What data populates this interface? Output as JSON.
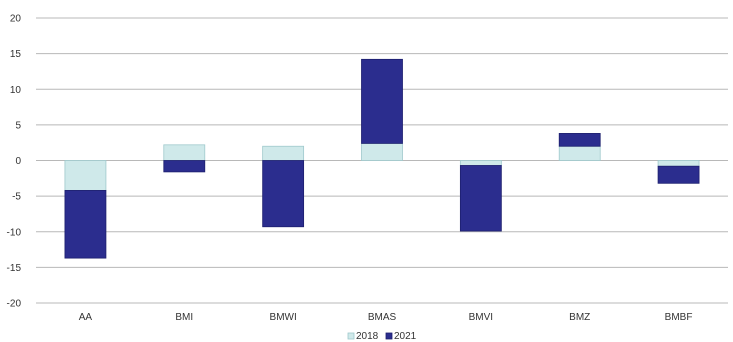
{
  "chart_data": {
    "type": "bar",
    "stacked": true,
    "categories": [
      "AA",
      "BMI",
      "BMWI",
      "BMAS",
      "BMVI",
      "BMZ",
      "BMBF"
    ],
    "series": [
      {
        "name": "2018",
        "color": "#cfe9ea",
        "values": [
          -4.2,
          2.2,
          2.0,
          2.4,
          -0.7,
          2.0,
          -0.8
        ]
      },
      {
        "name": "2021",
        "color": "#2b2d8e",
        "values": [
          -9.5,
          -1.6,
          -9.3,
          11.8,
          -9.2,
          1.8,
          -2.4
        ]
      }
    ],
    "ylim": [
      -20,
      20
    ],
    "yticks": [
      20,
      15,
      10,
      5,
      0,
      -5,
      -10,
      -15,
      -20
    ],
    "grid": true,
    "legend": "bottom-center",
    "xlabel": "",
    "ylabel": "",
    "title": ""
  }
}
